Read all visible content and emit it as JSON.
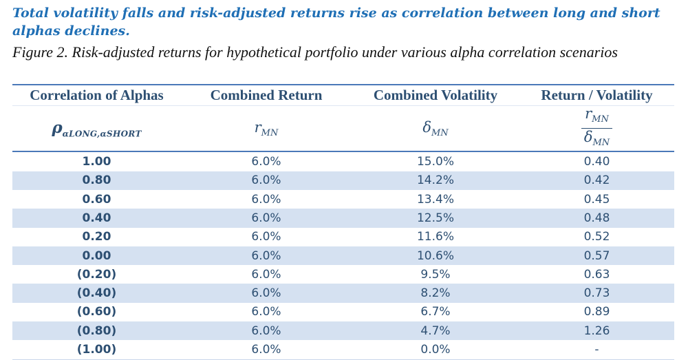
{
  "headline": "Total volatility falls and risk-adjusted returns rise as correlation between long and short alphas declines.",
  "caption": "Figure 2. Risk-adjusted returns for hypothetical portfolio under various alpha correlation scenarios",
  "table": {
    "headers": [
      "Correlation of Alphas",
      "Combined Return",
      "Combined Volatility",
      "Return / Volatility"
    ],
    "symbols": {
      "rho": "ρ",
      "rho_sub": "αLONG,αSHORT",
      "return": "r",
      "return_sub": "MN",
      "volatility": "δ",
      "volatility_sub": "MN",
      "ratio_num": "r",
      "ratio_num_sub": "MN",
      "ratio_den": "δ",
      "ratio_den_sub": "MN"
    },
    "rows": [
      {
        "correlation": "1.00",
        "return": "6.0%",
        "volatility": "15.0%",
        "ratio": "0.40"
      },
      {
        "correlation": "0.80",
        "return": "6.0%",
        "volatility": "14.2%",
        "ratio": "0.42"
      },
      {
        "correlation": "0.60",
        "return": "6.0%",
        "volatility": "13.4%",
        "ratio": "0.45"
      },
      {
        "correlation": "0.40",
        "return": "6.0%",
        "volatility": "12.5%",
        "ratio": "0.48"
      },
      {
        "correlation": "0.20",
        "return": "6.0%",
        "volatility": "11.6%",
        "ratio": "0.52"
      },
      {
        "correlation": "0.00",
        "return": "6.0%",
        "volatility": "10.6%",
        "ratio": "0.57"
      },
      {
        "correlation": "(0.20)",
        "return": "6.0%",
        "volatility": "9.5%",
        "ratio": "0.63"
      },
      {
        "correlation": "(0.40)",
        "return": "6.0%",
        "volatility": "8.2%",
        "ratio": "0.73"
      },
      {
        "correlation": "(0.60)",
        "return": "6.0%",
        "volatility": "6.7%",
        "ratio": "0.89"
      },
      {
        "correlation": "(0.80)",
        "return": "6.0%",
        "volatility": "4.7%",
        "ratio": "1.26"
      },
      {
        "correlation": "(1.00)",
        "return": "6.0%",
        "volatility": "0.0%",
        "ratio": "-"
      }
    ]
  },
  "colors": {
    "headline": "#1f6fb5",
    "header_text": "#2d4f72",
    "rule": "#4a78b8",
    "row_shade": "#d5e1f1"
  }
}
